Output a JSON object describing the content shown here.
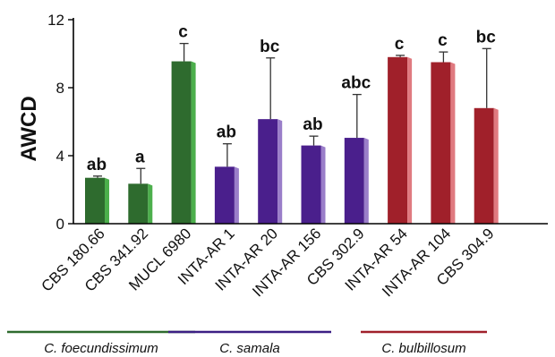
{
  "chart_data": {
    "type": "bar",
    "title": "",
    "xlabel": "",
    "ylabel": "AWCD",
    "ylim": [
      0,
      12
    ],
    "yticks": [
      0,
      4,
      8,
      12
    ],
    "grid": false,
    "categories": [
      "CBS 180.66",
      "CBS 341.92",
      "MUCL 6980",
      "INTA-AR 1",
      "INTA-AR 20",
      "INTA-AR 156",
      "CBS 302.9",
      "INTA-AR 54",
      "INTA-AR 104",
      "CBS 304.9"
    ],
    "values": [
      2.7,
      2.35,
      9.55,
      3.35,
      6.15,
      4.6,
      5.05,
      9.8,
      9.5,
      6.8
    ],
    "error_upper": [
      2.8,
      3.25,
      10.6,
      4.7,
      9.75,
      5.15,
      7.6,
      9.9,
      10.1,
      10.3
    ],
    "significance_labels": [
      "ab",
      "a",
      "c",
      "ab",
      "bc",
      "ab",
      "abc",
      "c",
      "c",
      "bc"
    ],
    "groups": [
      {
        "name": "C. foecundissimum",
        "start": 0,
        "end": 2,
        "color": "#2e6b2e"
      },
      {
        "name": "C. samala",
        "start": 3,
        "end": 6,
        "color": "#3c1f84"
      },
      {
        "name": "C. bulbillosum",
        "start": 7,
        "end": 9,
        "color": "#a0202a"
      }
    ],
    "bar_colors": {
      "C. foecundissimum": {
        "front": "#2e6b2e",
        "side": "#4caf4c"
      },
      "C. samala": {
        "front": "#4a1f8c",
        "side": "#9a7ec9"
      },
      "C. bulbillosum": {
        "front": "#a0202a",
        "side": "#e07a80"
      }
    }
  }
}
